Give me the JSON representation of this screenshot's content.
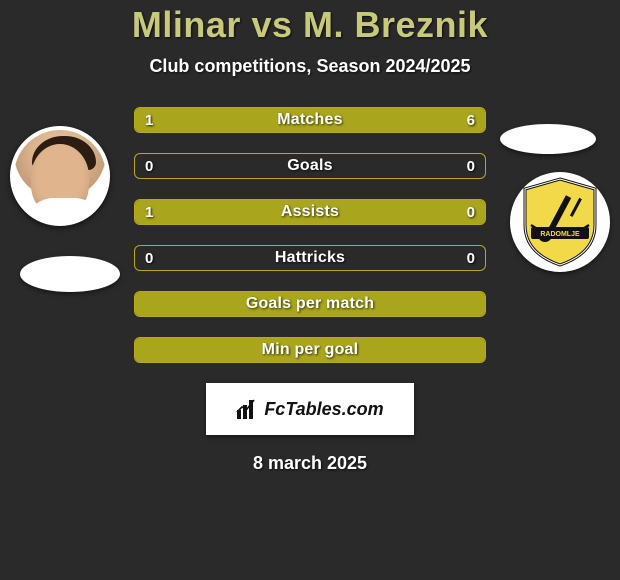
{
  "title": {
    "player1": "Mlinar",
    "vs": "vs",
    "player2": "M. Breznik",
    "color": "#c9c97a"
  },
  "subtitle": "Club competitions, Season 2024/2025",
  "stats": {
    "bar_border_color": "#bca61a",
    "bar_fill_color": "#a9a51d",
    "rows": [
      {
        "label": "Matches",
        "left": "1",
        "right": "6",
        "left_pct": 14,
        "right_pct": 86,
        "has_values": true
      },
      {
        "label": "Goals",
        "left": "0",
        "right": "0",
        "left_pct": 0,
        "right_pct": 0,
        "has_values": true
      },
      {
        "label": "Assists",
        "left": "1",
        "right": "0",
        "left_pct": 100,
        "right_pct": 0,
        "has_values": true
      },
      {
        "label": "Hattricks",
        "left": "0",
        "right": "0",
        "left_pct": 0,
        "right_pct": 0,
        "has_values": true
      },
      {
        "label": "Goals per match",
        "left": "",
        "right": "",
        "left_pct": 100,
        "right_pct": 0,
        "has_values": false,
        "full": true
      },
      {
        "label": "Min per goal",
        "left": "",
        "right": "",
        "left_pct": 100,
        "right_pct": 0,
        "has_values": false,
        "full": true
      }
    ]
  },
  "footer_brand": "FcTables.com",
  "date": "8 march 2025",
  "badges": {
    "right_team_hint": "Radomlje"
  },
  "colors": {
    "background": "#2a2a2a",
    "text": "#ffffff"
  }
}
